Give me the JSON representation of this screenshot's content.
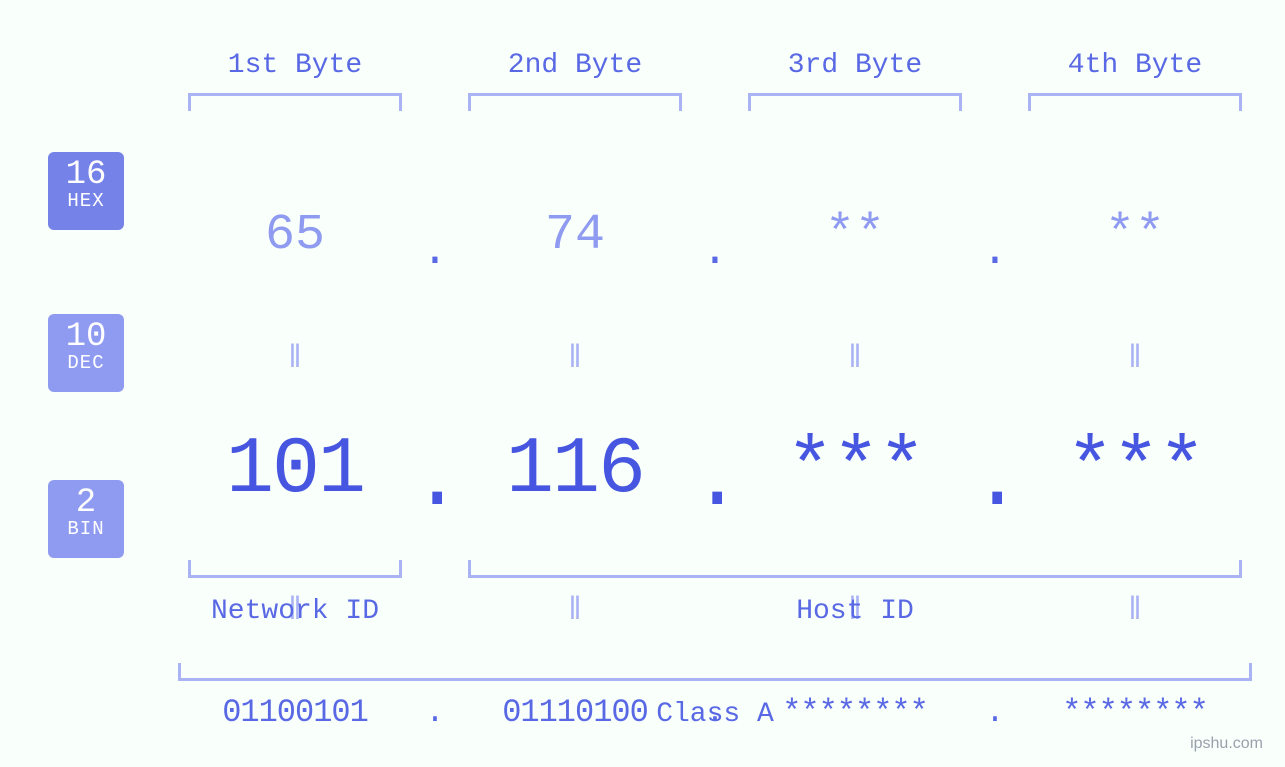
{
  "diagram": {
    "type": "infographic",
    "background_color": "#f9fffb",
    "accent_color": "#5968e4",
    "bracket_color": "#aab3f4",
    "byte_labels": [
      "1st Byte",
      "2nd Byte",
      "3rd Byte",
      "4th Byte"
    ],
    "separator": ".",
    "equal_symbol": "ǁ",
    "hex": {
      "badge_num": "16",
      "badge_name": "HEX",
      "badge_bg": "#7582e8",
      "text_color": "#8f9bf0",
      "fontsize": 50,
      "values": [
        "65",
        "74",
        "**",
        "**"
      ]
    },
    "dec": {
      "badge_num": "10",
      "badge_name": "DEC",
      "badge_bg": "#8f9bf0",
      "text_color": "#4756e0",
      "fontsize": 80,
      "values": [
        "101",
        "116",
        "***",
        "***"
      ]
    },
    "bin": {
      "badge_num": "2",
      "badge_name": "BIN",
      "badge_bg": "#8f9bf0",
      "text_color": "#5968e4",
      "fontsize": 32,
      "values": [
        "01100101",
        "01110100",
        "********",
        "********"
      ]
    },
    "bottom": {
      "network_label": "Network ID",
      "host_label": "Host ID",
      "class_label": "Class A"
    },
    "watermark": "ipshu.com"
  }
}
